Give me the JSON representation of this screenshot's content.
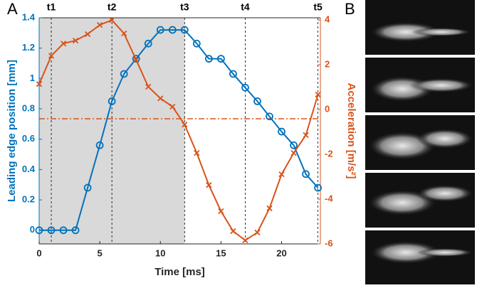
{
  "panel_labels": [
    "A",
    "B"
  ],
  "chart_data": {
    "type": "line",
    "x_label": "Time [ms]",
    "y_label": "Leading edge position [mm]",
    "y2_label": "Acceleration [m/s²]",
    "x": [
      0,
      1,
      2,
      3,
      4,
      5,
      6,
      7,
      8,
      9,
      10,
      11,
      12,
      13,
      14,
      15,
      16,
      17,
      18,
      19,
      20,
      21,
      22,
      23
    ],
    "series": [
      {
        "name": "Leading edge position",
        "color": "#0072bd",
        "marker": "circle",
        "axis": "y",
        "values": [
          0,
          0,
          0,
          0,
          0.28,
          0.56,
          0.85,
          1.03,
          1.13,
          1.23,
          1.32,
          1.32,
          1.32,
          1.23,
          1.13,
          1.13,
          1.03,
          0.94,
          0.85,
          0.75,
          0.65,
          0.56,
          0.37,
          0.28
        ]
      },
      {
        "name": "Acceleration",
        "color": "#d95319",
        "marker": "x",
        "axis": "y2",
        "values": [
          1.14,
          2.4,
          2.95,
          3.08,
          3.37,
          3.78,
          4.0,
          3.4,
          2.22,
          1.02,
          0.5,
          0.13,
          -0.67,
          -1.94,
          -3.37,
          -4.54,
          -5.43,
          -5.84,
          -5.49,
          -4.41,
          -2.89,
          -1.94,
          -1.14,
          0.67
        ]
      }
    ],
    "xlim": [
      0,
      23.2
    ],
    "xticks": [
      0,
      5,
      10,
      15,
      20
    ],
    "ylim": [
      -0.09,
      1.4
    ],
    "yticks": [
      0,
      0.2,
      0.4,
      0.6,
      0.8,
      1,
      1.2,
      1.4
    ],
    "y2lim": [
      -6,
      4.1
    ],
    "y2ticks": [
      -6,
      -4,
      -2,
      0,
      2,
      4
    ],
    "shaded_xrange": [
      0,
      12
    ],
    "reference_line": {
      "value": -0.41,
      "axis": "y2"
    },
    "events": [
      {
        "x": 1,
        "label": "t1"
      },
      {
        "x": 6,
        "label": "t2"
      },
      {
        "x": 12,
        "label": "t3"
      },
      {
        "x": 17,
        "label": "t4"
      },
      {
        "x": 23,
        "label": "t5"
      }
    ]
  }
}
